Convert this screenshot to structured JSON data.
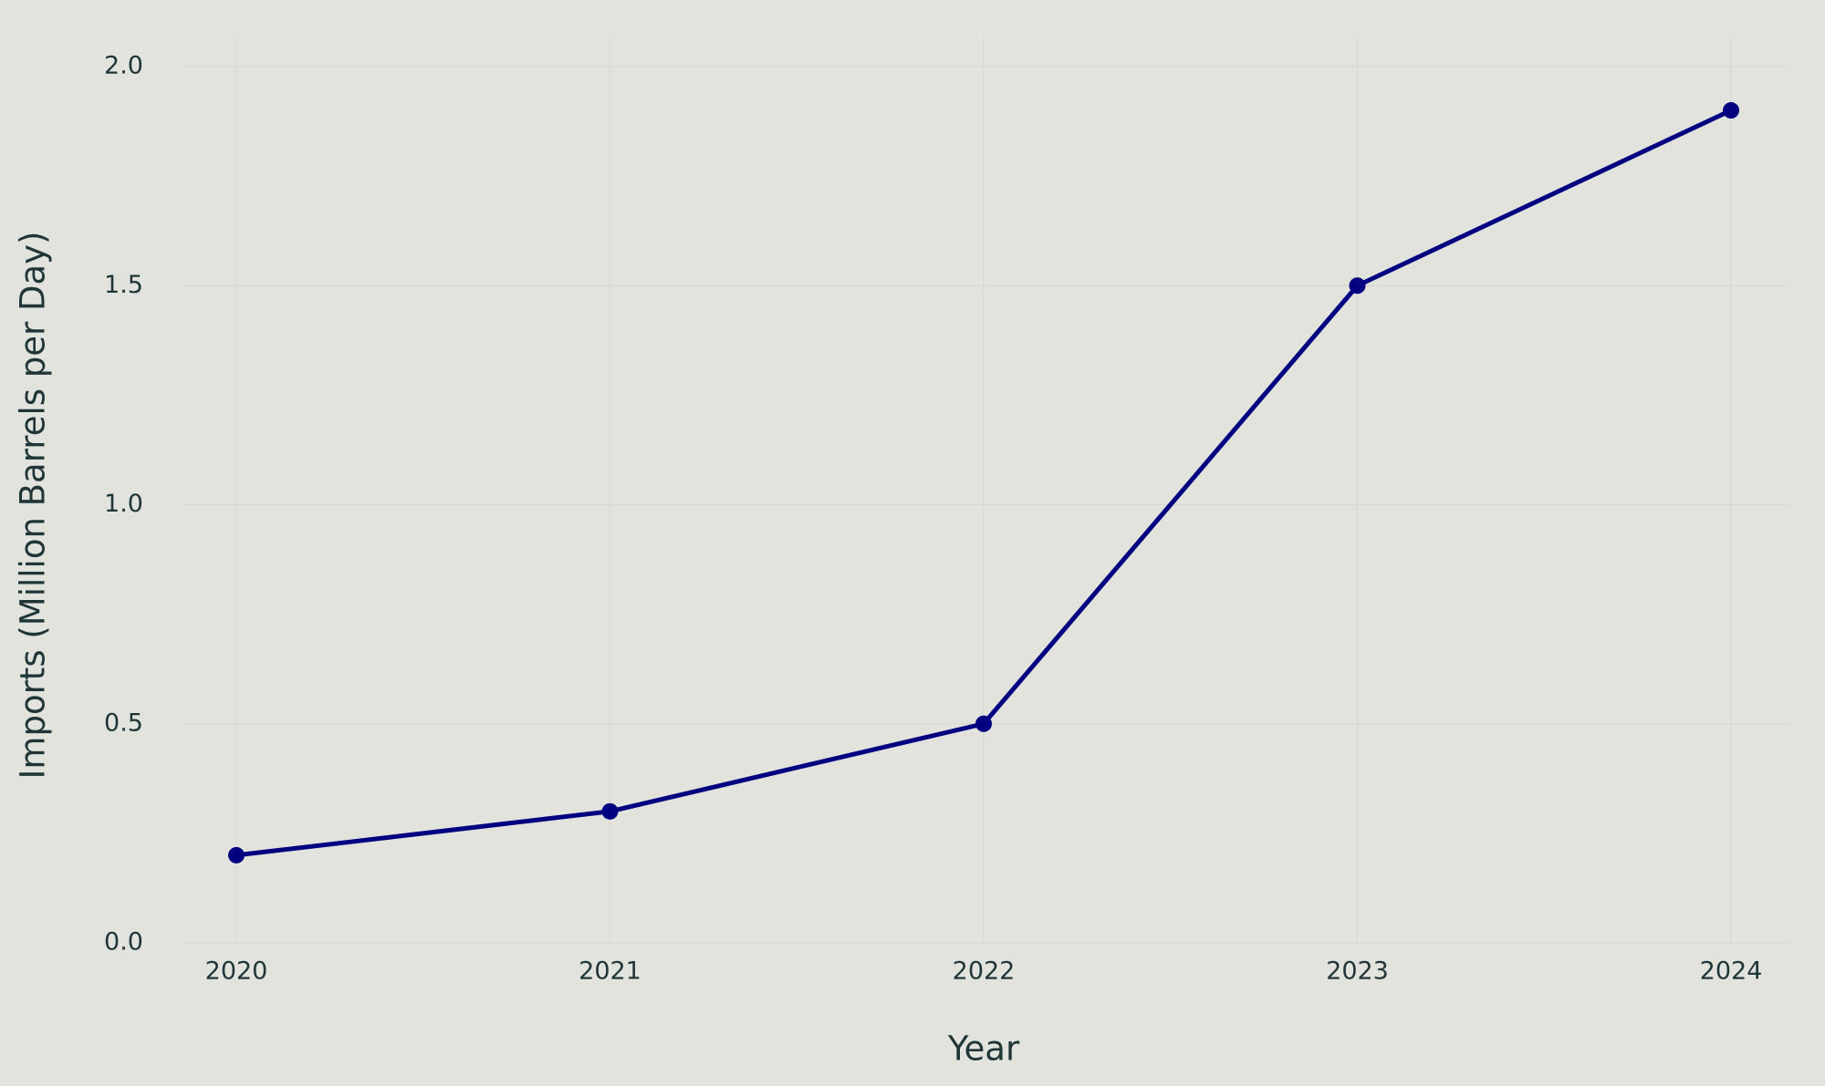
{
  "chart_data": {
    "type": "line",
    "x_label": "Year",
    "y_label": "Imports (Million Barrels per Day)",
    "x": [
      2020,
      2021,
      2022,
      2023,
      2024
    ],
    "values": [
      0.2,
      0.3,
      0.5,
      1.5,
      1.9
    ],
    "color": "#000080",
    "xlim": [
      2020,
      2024
    ],
    "xticks": [
      2020,
      2021,
      2022,
      2023,
      2024
    ],
    "ylim": [
      0,
      2
    ],
    "yticks": [
      {
        "value": 0,
        "label": "0.0"
      },
      0.5,
      {
        "value": 1,
        "label": "1.0"
      },
      1.5,
      {
        "value": 2,
        "label": "2.0"
      }
    ],
    "grid": true
  }
}
